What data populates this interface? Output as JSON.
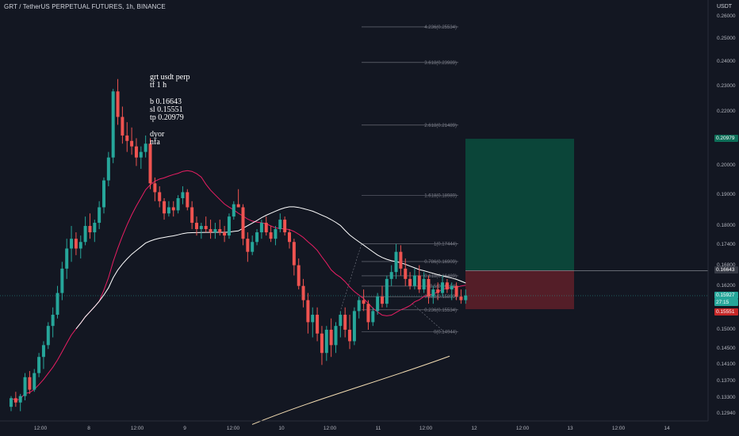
{
  "header": {
    "symbol_title": "GRT / TetherUS PERPETUAL FUTURES, 1h, BINANCE"
  },
  "annotation": {
    "note_text": "grt usdt perp\ntf 1 h\n\nb 0.16643\nsl 0.15551\ntp 0.20979\n\ndyor\nnfa"
  },
  "price_axis": {
    "currency": "USDT",
    "ticks": [
      "0.26000",
      "0.25000",
      "0.24000",
      "0.23000",
      "0.22000",
      "0.20000",
      "0.19000",
      "0.18000",
      "0.17400",
      "0.16800",
      "0.16200",
      "0.15000",
      "0.14500",
      "0.14100",
      "0.13700",
      "0.13300",
      "0.12940"
    ],
    "badges": {
      "take_profit": "0.20979",
      "entry": "0.16643",
      "last_price": "0.15927",
      "countdown": "27:15",
      "stop_loss": "0.15551"
    }
  },
  "time_axis": {
    "labels": [
      "12:00",
      "8",
      "12:00",
      "9",
      "12:00",
      "10",
      "12:00",
      "11",
      "12:00",
      "12",
      "12:00",
      "13",
      "12:00",
      "14"
    ]
  },
  "fib_levels": [
    {
      "ratio": "4.236",
      "value": "0.25534"
    },
    {
      "ratio": "3.618",
      "value": "0.23989"
    },
    {
      "ratio": "2.618",
      "value": "0.21489"
    },
    {
      "ratio": "1.618",
      "value": "0.18989"
    },
    {
      "ratio": "1",
      "value": "0.17444"
    },
    {
      "ratio": "0.786",
      "value": "0.16909"
    },
    {
      "ratio": "0.618",
      "value": "0.16489"
    },
    {
      "ratio": "0.5",
      "value": "0.16194"
    },
    {
      "ratio": "0.382",
      "value": "0.15899"
    },
    {
      "ratio": "0.236",
      "value": "0.15534"
    },
    {
      "ratio": "0",
      "value": "0.14944"
    }
  ],
  "colors": {
    "background": "#131722",
    "candle_up": "#26a69a",
    "candle_down": "#ef5350",
    "ma_fast": "#e91e63",
    "ma_mid": "#ffffff",
    "ma_slow": "#f5deb3",
    "tp_zone": "#0b4a3c",
    "sl_zone": "#5c1f29",
    "tp_badge": "#0d6e58",
    "sl_badge": "#c62828",
    "last_badge": "#26a69a",
    "entry_badge": "#363a45"
  },
  "chart_data": {
    "type": "candlestick",
    "title": "GRT / TetherUS PERPETUAL FUTURES, 1h, BINANCE",
    "ylabel": "USDT",
    "ylim": [
      0.127,
      0.265
    ],
    "scale": "log",
    "trade_setup": {
      "entry": 0.16643,
      "stop_loss": 0.15551,
      "take_profit": 0.20979
    },
    "last_price": 0.15927,
    "fib_extension": {
      "swing_high": 0.17444,
      "swing_low": 0.14944
    },
    "candles_ohlc": [
      [
        0.131,
        0.1335,
        0.13,
        0.133
      ],
      [
        0.133,
        0.1345,
        0.131,
        0.132
      ],
      [
        0.132,
        0.134,
        0.13,
        0.1335
      ],
      [
        0.1335,
        0.139,
        0.1325,
        0.138
      ],
      [
        0.138,
        0.1395,
        0.134,
        0.135
      ],
      [
        0.135,
        0.14,
        0.1345,
        0.139
      ],
      [
        0.139,
        0.144,
        0.138,
        0.143
      ],
      [
        0.143,
        0.147,
        0.14,
        0.146
      ],
      [
        0.146,
        0.152,
        0.145,
        0.151
      ],
      [
        0.151,
        0.156,
        0.148,
        0.154
      ],
      [
        0.154,
        0.162,
        0.153,
        0.16
      ],
      [
        0.16,
        0.169,
        0.158,
        0.167
      ],
      [
        0.167,
        0.176,
        0.164,
        0.173
      ],
      [
        0.173,
        0.18,
        0.169,
        0.176
      ],
      [
        0.176,
        0.178,
        0.171,
        0.173
      ],
      [
        0.173,
        0.177,
        0.17,
        0.175
      ],
      [
        0.175,
        0.183,
        0.174,
        0.18
      ],
      [
        0.18,
        0.184,
        0.176,
        0.178
      ],
      [
        0.178,
        0.182,
        0.175,
        0.181
      ],
      [
        0.181,
        0.188,
        0.179,
        0.186
      ],
      [
        0.186,
        0.196,
        0.184,
        0.195
      ],
      [
        0.195,
        0.205,
        0.193,
        0.203
      ],
      [
        0.203,
        0.229,
        0.201,
        0.228
      ],
      [
        0.228,
        0.233,
        0.215,
        0.218
      ],
      [
        0.218,
        0.222,
        0.208,
        0.211
      ],
      [
        0.211,
        0.216,
        0.205,
        0.209
      ],
      [
        0.209,
        0.214,
        0.204,
        0.207
      ],
      [
        0.207,
        0.21,
        0.2,
        0.203
      ],
      [
        0.203,
        0.207,
        0.199,
        0.205
      ],
      [
        0.205,
        0.211,
        0.203,
        0.208
      ],
      [
        0.208,
        0.21,
        0.192,
        0.194
      ],
      [
        0.194,
        0.196,
        0.188,
        0.191
      ],
      [
        0.191,
        0.193,
        0.186,
        0.188
      ],
      [
        0.188,
        0.189,
        0.182,
        0.184
      ],
      [
        0.184,
        0.188,
        0.183,
        0.186
      ],
      [
        0.186,
        0.188,
        0.183,
        0.185
      ],
      [
        0.185,
        0.19,
        0.184,
        0.189
      ],
      [
        0.189,
        0.193,
        0.187,
        0.191
      ],
      [
        0.191,
        0.192,
        0.185,
        0.186
      ],
      [
        0.186,
        0.188,
        0.179,
        0.181
      ],
      [
        0.181,
        0.183,
        0.177,
        0.179
      ],
      [
        0.179,
        0.181,
        0.176,
        0.18
      ],
      [
        0.18,
        0.183,
        0.178,
        0.179
      ],
      [
        0.179,
        0.182,
        0.176,
        0.178
      ],
      [
        0.178,
        0.181,
        0.176,
        0.179
      ],
      [
        0.179,
        0.182,
        0.177,
        0.178
      ],
      [
        0.178,
        0.18,
        0.175,
        0.177
      ],
      [
        0.177,
        0.184,
        0.176,
        0.183
      ],
      [
        0.183,
        0.188,
        0.182,
        0.187
      ],
      [
        0.187,
        0.192,
        0.186,
        0.186
      ],
      [
        0.186,
        0.187,
        0.174,
        0.176
      ],
      [
        0.176,
        0.178,
        0.169,
        0.172
      ],
      [
        0.172,
        0.177,
        0.171,
        0.175
      ],
      [
        0.175,
        0.179,
        0.174,
        0.178
      ],
      [
        0.178,
        0.182,
        0.176,
        0.181
      ],
      [
        0.181,
        0.183,
        0.177,
        0.178
      ],
      [
        0.178,
        0.18,
        0.175,
        0.176
      ],
      [
        0.176,
        0.18,
        0.174,
        0.179
      ],
      [
        0.179,
        0.184,
        0.178,
        0.182
      ],
      [
        0.182,
        0.183,
        0.177,
        0.178
      ],
      [
        0.178,
        0.179,
        0.173,
        0.175
      ],
      [
        0.175,
        0.176,
        0.165,
        0.168
      ],
      [
        0.168,
        0.17,
        0.161,
        0.162
      ],
      [
        0.162,
        0.164,
        0.156,
        0.158
      ],
      [
        0.158,
        0.16,
        0.149,
        0.152
      ],
      [
        0.152,
        0.156,
        0.148,
        0.154
      ],
      [
        0.154,
        0.156,
        0.147,
        0.149
      ],
      [
        0.149,
        0.151,
        0.141,
        0.144
      ],
      [
        0.144,
        0.151,
        0.142,
        0.15
      ],
      [
        0.15,
        0.153,
        0.143,
        0.146
      ],
      [
        0.146,
        0.152,
        0.144,
        0.151
      ],
      [
        0.151,
        0.155,
        0.148,
        0.154
      ],
      [
        0.154,
        0.156,
        0.148,
        0.15
      ],
      [
        0.15,
        0.154,
        0.145,
        0.147
      ],
      [
        0.147,
        0.156,
        0.146,
        0.155
      ],
      [
        0.155,
        0.159,
        0.153,
        0.158
      ],
      [
        0.158,
        0.161,
        0.155,
        0.157
      ],
      [
        0.157,
        0.158,
        0.15,
        0.152
      ],
      [
        0.152,
        0.156,
        0.151,
        0.155
      ],
      [
        0.155,
        0.16,
        0.154,
        0.159
      ],
      [
        0.159,
        0.162,
        0.156,
        0.157
      ],
      [
        0.157,
        0.165,
        0.156,
        0.164
      ],
      [
        0.164,
        0.168,
        0.162,
        0.166
      ],
      [
        0.166,
        0.1744,
        0.164,
        0.172
      ],
      [
        0.172,
        0.174,
        0.165,
        0.167
      ],
      [
        0.167,
        0.17,
        0.162,
        0.164
      ],
      [
        0.164,
        0.166,
        0.161,
        0.162
      ],
      [
        0.162,
        0.167,
        0.161,
        0.165
      ],
      [
        0.165,
        0.168,
        0.16,
        0.161
      ],
      [
        0.161,
        0.166,
        0.16,
        0.164
      ],
      [
        0.164,
        0.165,
        0.157,
        0.159
      ],
      [
        0.159,
        0.162,
        0.157,
        0.161
      ],
      [
        0.161,
        0.163,
        0.158,
        0.16
      ],
      [
        0.16,
        0.165,
        0.159,
        0.163
      ],
      [
        0.163,
        0.164,
        0.16,
        0.161
      ],
      [
        0.161,
        0.163,
        0.158,
        0.162
      ],
      [
        0.162,
        0.163,
        0.158,
        0.159
      ],
      [
        0.159,
        0.161,
        0.157,
        0.158
      ],
      [
        0.158,
        0.161,
        0.157,
        0.1593
      ]
    ]
  }
}
